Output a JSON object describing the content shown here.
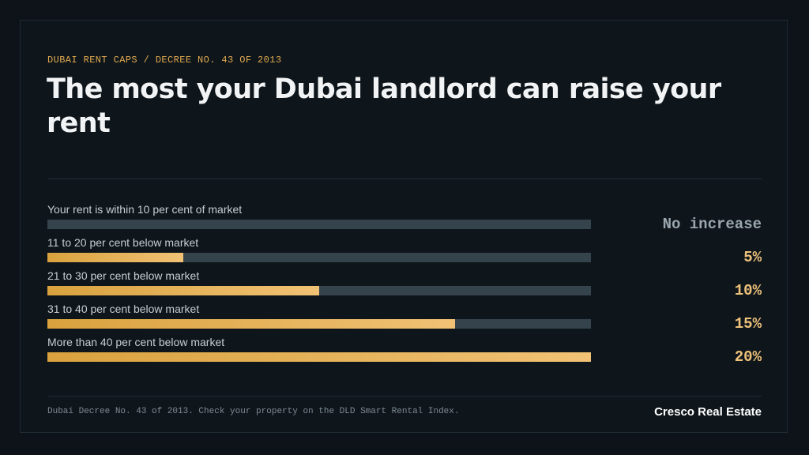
{
  "header": {
    "eyebrow": "DUBAI RENT CAPS / DECREE NO. 43 OF 2013",
    "title": "The most your Dubai landlord can raise your rent"
  },
  "chart_data": {
    "type": "bar",
    "orientation": "horizontal",
    "categories": [
      "Your rent is within 10 per cent of market",
      "11 to 20 per cent below market",
      "21 to 30 per cent below market",
      "31 to 40 per cent below market",
      "More than 40 per cent below market"
    ],
    "values": [
      0,
      5,
      10,
      15,
      20
    ],
    "value_labels": [
      "No increase",
      "5%",
      "10%",
      "15%",
      "20%"
    ],
    "xlim": [
      0,
      20
    ],
    "unit": "%",
    "grid": false,
    "legend": "none",
    "colors": {
      "fill": "#e8b25a",
      "track": "#35434c",
      "value": "#eec27b",
      "value_muted": "#9aa6ad"
    }
  },
  "footer": {
    "note": "Dubai Decree No. 43 of 2013. Check your property on the DLD Smart Rental Index.",
    "brand": "Cresco Real Estate"
  }
}
